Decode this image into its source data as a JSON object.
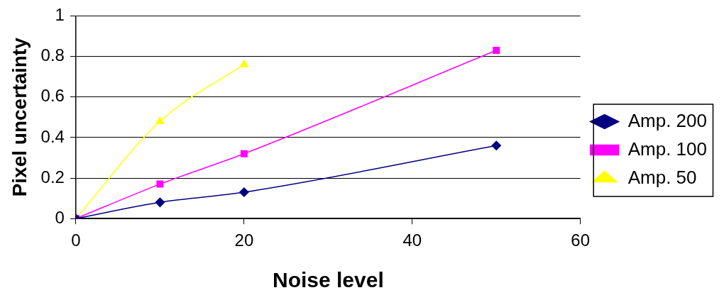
{
  "chart_data": {
    "type": "line",
    "xlabel": "Noise level",
    "ylabel": "Pixel uncertainty",
    "xlim": [
      0,
      60
    ],
    "xticks": [
      0,
      20,
      40,
      60
    ],
    "ylim": [
      0,
      1
    ],
    "yticks": [
      0,
      0.2,
      0.4,
      0.6,
      0.8,
      1
    ],
    "grid": "y",
    "legend": "right",
    "line_style": "solid",
    "series": [
      {
        "name": "Amp. 200",
        "color": "#000080",
        "marker": "diamond",
        "x": [
          0,
          10,
          20,
          50
        ],
        "values": [
          0,
          0.08,
          0.13,
          0.36
        ]
      },
      {
        "name": "Amp. 100",
        "color": "#ff00ff",
        "marker": "square",
        "x": [
          0,
          10,
          20,
          50
        ],
        "values": [
          0,
          0.17,
          0.32,
          0.83
        ]
      },
      {
        "name": "Amp. 50",
        "color": "#ffff00",
        "marker": "triangle",
        "x": [
          0,
          10,
          20
        ],
        "values": [
          0,
          0.48,
          0.76
        ]
      }
    ]
  }
}
